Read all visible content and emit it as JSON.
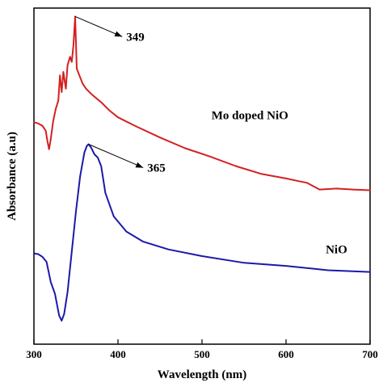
{
  "chart_data": {
    "type": "line",
    "xlabel": "Wavelength (nm)",
    "ylabel": "Absorbance (a.u)",
    "xlim": [
      300,
      700
    ],
    "ylim": [
      0,
      100
    ],
    "x_ticks": [
      "300",
      "400",
      "500",
      "600",
      "700"
    ],
    "y_ticks_shown": false,
    "grid": false,
    "legend": "none",
    "series": [
      {
        "name": "Mo doped NiO",
        "color": "#d42020",
        "x": [
          300,
          305,
          310,
          314,
          316,
          318,
          320,
          323,
          326,
          329,
          331,
          333,
          335,
          338,
          340,
          343,
          345,
          347,
          349,
          351,
          354,
          358,
          362,
          368,
          375,
          380,
          390,
          400,
          420,
          450,
          480,
          510,
          540,
          570,
          600,
          615,
          625,
          640,
          660,
          680,
          700
        ],
        "y": [
          66.0,
          65.7,
          65.0,
          63.5,
          60.5,
          58.0,
          61.0,
          66.5,
          70.0,
          72.5,
          80.0,
          75.0,
          81.0,
          76.0,
          83.0,
          85.5,
          84.0,
          89.0,
          97.5,
          82.0,
          80.0,
          77.5,
          76.0,
          74.5,
          73.0,
          72.0,
          69.5,
          67.5,
          65.0,
          61.5,
          58.3,
          55.8,
          53.0,
          50.7,
          49.3,
          48.5,
          48.0,
          46.0,
          46.3,
          46.0,
          45.8
        ]
      },
      {
        "name": "NiO",
        "color": "#1a1aa8",
        "x": [
          300,
          305,
          310,
          315,
          320,
          325,
          330,
          333,
          336,
          340,
          345,
          350,
          355,
          360,
          363,
          365,
          368,
          372,
          376,
          380,
          385,
          395,
          410,
          430,
          460,
          500,
          550,
          600,
          650,
          700
        ],
        "y": [
          27.0,
          26.8,
          26.0,
          24.5,
          18.5,
          15.0,
          8.5,
          7.0,
          9.0,
          15.5,
          27.5,
          39.5,
          50.0,
          57.0,
          59.0,
          59.5,
          58.5,
          56.5,
          55.5,
          53.0,
          45.0,
          38.0,
          33.5,
          30.5,
          28.2,
          26.2,
          24.2,
          23.3,
          22.0,
          21.5
        ]
      }
    ],
    "series_labels": [
      {
        "text": "Mo doped NiO",
        "x": 557,
        "y": 67
      },
      {
        "text": "NiO",
        "x": 660,
        "y": 27
      }
    ],
    "annotations": [
      {
        "text": "349",
        "from_x": 349,
        "from_y": 97.5,
        "to_x": 405,
        "to_y": 91.5
      },
      {
        "text": "365",
        "from_x": 365,
        "from_y": 59.5,
        "to_x": 430,
        "to_y": 52.5
      }
    ]
  }
}
